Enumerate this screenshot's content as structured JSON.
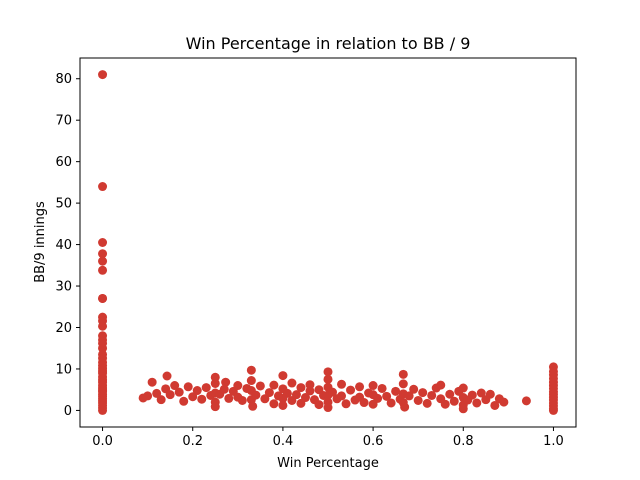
{
  "chart_data": {
    "type": "scatter",
    "title": "Win Percentage in relation to BB / 9",
    "xlabel": "Win Percentage",
    "ylabel": "BB/9 innings",
    "xlim": [
      -0.05,
      1.05
    ],
    "ylim": [
      -4,
      85
    ],
    "xticks": [
      0.0,
      0.2,
      0.4,
      0.6,
      0.8,
      1.0
    ],
    "xtick_labels": [
      "0.0",
      "0.2",
      "0.4",
      "0.6",
      "0.8",
      "1.0"
    ],
    "yticks": [
      0,
      10,
      20,
      30,
      40,
      50,
      60,
      70,
      80
    ],
    "ytick_labels": [
      "0",
      "10",
      "20",
      "30",
      "40",
      "50",
      "60",
      "70",
      "80"
    ],
    "grid": false,
    "marker_color": "#d03a31",
    "series": [
      {
        "points": [
          [
            0.0,
            81.0
          ],
          [
            0.0,
            54.0
          ],
          [
            0.0,
            40.5
          ],
          [
            0.0,
            37.8
          ],
          [
            0.0,
            36.0
          ],
          [
            0.0,
            33.8
          ],
          [
            0.0,
            27.0
          ],
          [
            0.0,
            27.0
          ],
          [
            0.0,
            22.5
          ],
          [
            0.0,
            21.6
          ],
          [
            0.0,
            20.3
          ],
          [
            0.0,
            18.0
          ],
          [
            0.0,
            17.0
          ],
          [
            0.0,
            16.2
          ],
          [
            0.0,
            15.0
          ],
          [
            0.0,
            13.5
          ],
          [
            0.0,
            12.6
          ],
          [
            0.0,
            11.6
          ],
          [
            0.0,
            10.8
          ],
          [
            0.0,
            10.1
          ],
          [
            0.0,
            9.5
          ],
          [
            0.0,
            9.0
          ],
          [
            0.0,
            8.1
          ],
          [
            0.0,
            7.4
          ],
          [
            0.0,
            6.8
          ],
          [
            0.0,
            6.0
          ],
          [
            0.0,
            5.4
          ],
          [
            0.0,
            4.9
          ],
          [
            0.0,
            4.5
          ],
          [
            0.0,
            3.9
          ],
          [
            0.0,
            3.4
          ],
          [
            0.0,
            2.8
          ],
          [
            0.0,
            2.3
          ],
          [
            0.0,
            1.8
          ],
          [
            0.0,
            1.2
          ],
          [
            0.0,
            0.6
          ],
          [
            0.0,
            0.0
          ],
          [
            1.0,
            10.5
          ],
          [
            1.0,
            9.4
          ],
          [
            1.0,
            8.6
          ],
          [
            1.0,
            7.7
          ],
          [
            1.0,
            6.8
          ],
          [
            1.0,
            6.0
          ],
          [
            1.0,
            5.3
          ],
          [
            1.0,
            4.5
          ],
          [
            1.0,
            3.9
          ],
          [
            1.0,
            3.2
          ],
          [
            1.0,
            2.5
          ],
          [
            1.0,
            1.8
          ],
          [
            1.0,
            1.1
          ],
          [
            1.0,
            0.4
          ],
          [
            1.0,
            0.0
          ],
          [
            0.09,
            3.0
          ],
          [
            0.1,
            3.5
          ],
          [
            0.11,
            6.8
          ],
          [
            0.12,
            4.1
          ],
          [
            0.13,
            2.6
          ],
          [
            0.14,
            5.2
          ],
          [
            0.143,
            8.3
          ],
          [
            0.15,
            3.8
          ],
          [
            0.16,
            6.0
          ],
          [
            0.17,
            4.4
          ],
          [
            0.18,
            2.2
          ],
          [
            0.19,
            5.7
          ],
          [
            0.2,
            3.3
          ],
          [
            0.21,
            4.8
          ],
          [
            0.22,
            2.7
          ],
          [
            0.23,
            5.5
          ],
          [
            0.24,
            3.6
          ],
          [
            0.25,
            8.0
          ],
          [
            0.25,
            6.5
          ],
          [
            0.25,
            4.2
          ],
          [
            0.25,
            2.0
          ],
          [
            0.25,
            0.9
          ],
          [
            0.26,
            3.9
          ],
          [
            0.27,
            5.1
          ],
          [
            0.273,
            6.8
          ],
          [
            0.28,
            2.9
          ],
          [
            0.29,
            4.6
          ],
          [
            0.3,
            3.2
          ],
          [
            0.3,
            6.0
          ],
          [
            0.31,
            2.4
          ],
          [
            0.32,
            5.3
          ],
          [
            0.33,
            9.7
          ],
          [
            0.33,
            7.2
          ],
          [
            0.33,
            4.8
          ],
          [
            0.33,
            2.6
          ],
          [
            0.333,
            1.0
          ],
          [
            0.34,
            3.7
          ],
          [
            0.35,
            5.9
          ],
          [
            0.36,
            2.8
          ],
          [
            0.37,
            4.3
          ],
          [
            0.38,
            6.1
          ],
          [
            0.38,
            1.6
          ],
          [
            0.39,
            3.5
          ],
          [
            0.4,
            8.4
          ],
          [
            0.4,
            5.2
          ],
          [
            0.4,
            2.9
          ],
          [
            0.4,
            1.2
          ],
          [
            0.41,
            4.1
          ],
          [
            0.42,
            6.6
          ],
          [
            0.42,
            2.4
          ],
          [
            0.43,
            3.8
          ],
          [
            0.44,
            5.5
          ],
          [
            0.44,
            1.7
          ],
          [
            0.45,
            3.1
          ],
          [
            0.46,
            4.7
          ],
          [
            0.46,
            6.2
          ],
          [
            0.47,
            2.6
          ],
          [
            0.48,
            5.0
          ],
          [
            0.48,
            1.4
          ],
          [
            0.49,
            3.6
          ],
          [
            0.5,
            9.3
          ],
          [
            0.5,
            7.5
          ],
          [
            0.5,
            5.6
          ],
          [
            0.5,
            3.7
          ],
          [
            0.5,
            2.0
          ],
          [
            0.5,
            0.7
          ],
          [
            0.51,
            4.4
          ],
          [
            0.52,
            2.8
          ],
          [
            0.53,
            6.3
          ],
          [
            0.53,
            3.5
          ],
          [
            0.54,
            1.6
          ],
          [
            0.55,
            4.9
          ],
          [
            0.56,
            2.5
          ],
          [
            0.57,
            5.7
          ],
          [
            0.57,
            3.2
          ],
          [
            0.58,
            1.9
          ],
          [
            0.59,
            4.2
          ],
          [
            0.6,
            6.0
          ],
          [
            0.6,
            3.8
          ],
          [
            0.6,
            1.5
          ],
          [
            0.61,
            2.9
          ],
          [
            0.62,
            5.3
          ],
          [
            0.63,
            3.4
          ],
          [
            0.64,
            1.8
          ],
          [
            0.65,
            4.6
          ],
          [
            0.66,
            2.7
          ],
          [
            0.667,
            8.7
          ],
          [
            0.667,
            6.4
          ],
          [
            0.667,
            4.0
          ],
          [
            0.667,
            1.9
          ],
          [
            0.67,
            0.8
          ],
          [
            0.68,
            3.5
          ],
          [
            0.69,
            5.1
          ],
          [
            0.7,
            2.4
          ],
          [
            0.71,
            4.3
          ],
          [
            0.72,
            1.7
          ],
          [
            0.73,
            3.6
          ],
          [
            0.74,
            5.4
          ],
          [
            0.75,
            2.8
          ],
          [
            0.75,
            6.1
          ],
          [
            0.76,
            1.5
          ],
          [
            0.77,
            3.9
          ],
          [
            0.78,
            2.2
          ],
          [
            0.79,
            4.6
          ],
          [
            0.8,
            5.4
          ],
          [
            0.8,
            3.1
          ],
          [
            0.8,
            1.3
          ],
          [
            0.8,
            0.4
          ],
          [
            0.81,
            2.5
          ],
          [
            0.82,
            3.7
          ],
          [
            0.83,
            1.8
          ],
          [
            0.84,
            4.2
          ],
          [
            0.85,
            2.6
          ],
          [
            0.86,
            3.9
          ],
          [
            0.87,
            1.2
          ],
          [
            0.88,
            2.8
          ],
          [
            0.89,
            2.0
          ],
          [
            0.94,
            2.3
          ]
        ]
      }
    ]
  }
}
